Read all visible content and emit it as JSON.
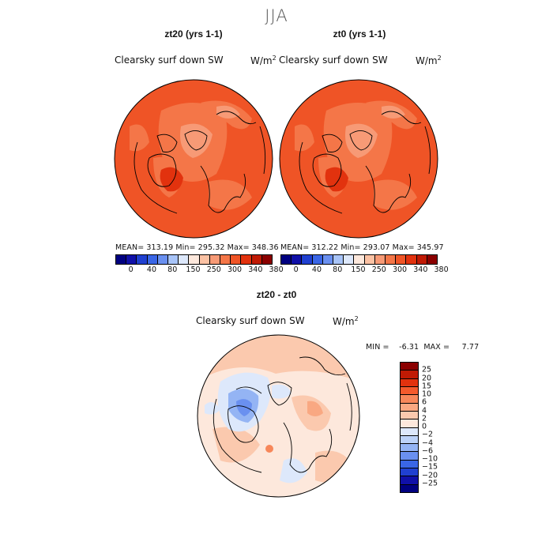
{
  "season": "JJA",
  "panels": [
    {
      "title": "zt20 (yrs 1-1)",
      "variable": "Clearsky surf down SW",
      "units_base": "W/m",
      "units_exp": "2",
      "stats": "MEAN= 313.19   Min= 295.32   Max= 348.36"
    },
    {
      "title": "zt0 (yrs 1-1)",
      "variable": "Clearsky surf down SW",
      "units_base": "W/m",
      "units_exp": "2",
      "stats": "MEAN= 312.22   Min= 293.07   Max= 345.97"
    }
  ],
  "colorbar_abs": {
    "labels": [
      "0",
      "40",
      "80",
      "150",
      "250",
      "300",
      "340",
      "380"
    ],
    "colors": [
      "#000080",
      "#1010a8",
      "#2040d0",
      "#3a66e6",
      "#6a90f0",
      "#a8c4f8",
      "#dde8fb",
      "#fde8dc",
      "#fbc2a4",
      "#f79a76",
      "#f47648",
      "#ef5426",
      "#e2320e",
      "#c01a04",
      "#8b0000"
    ]
  },
  "difference": {
    "title": "zt20 - zt0",
    "variable": "Clearsky surf down SW",
    "units_base": "W/m",
    "units_exp": "2",
    "minmax": "MIN =    -6.31  MAX =     7.77",
    "colorbar_labels": [
      "25",
      "20",
      "15",
      "10",
      "6",
      "4",
      "2",
      "0",
      "−2",
      "−4",
      "−6",
      "−10",
      "−15",
      "−20",
      "−25"
    ],
    "colorbar_colors": [
      "#8b0000",
      "#c01a04",
      "#e2320e",
      "#f45a2c",
      "#f7875a",
      "#f9a882",
      "#fbc9ae",
      "#fde8dc",
      "#dde8fb",
      "#bcd2f8",
      "#94b4f4",
      "#6a90f0",
      "#3a66e6",
      "#2040d0",
      "#1010a8",
      "#000080"
    ]
  }
}
